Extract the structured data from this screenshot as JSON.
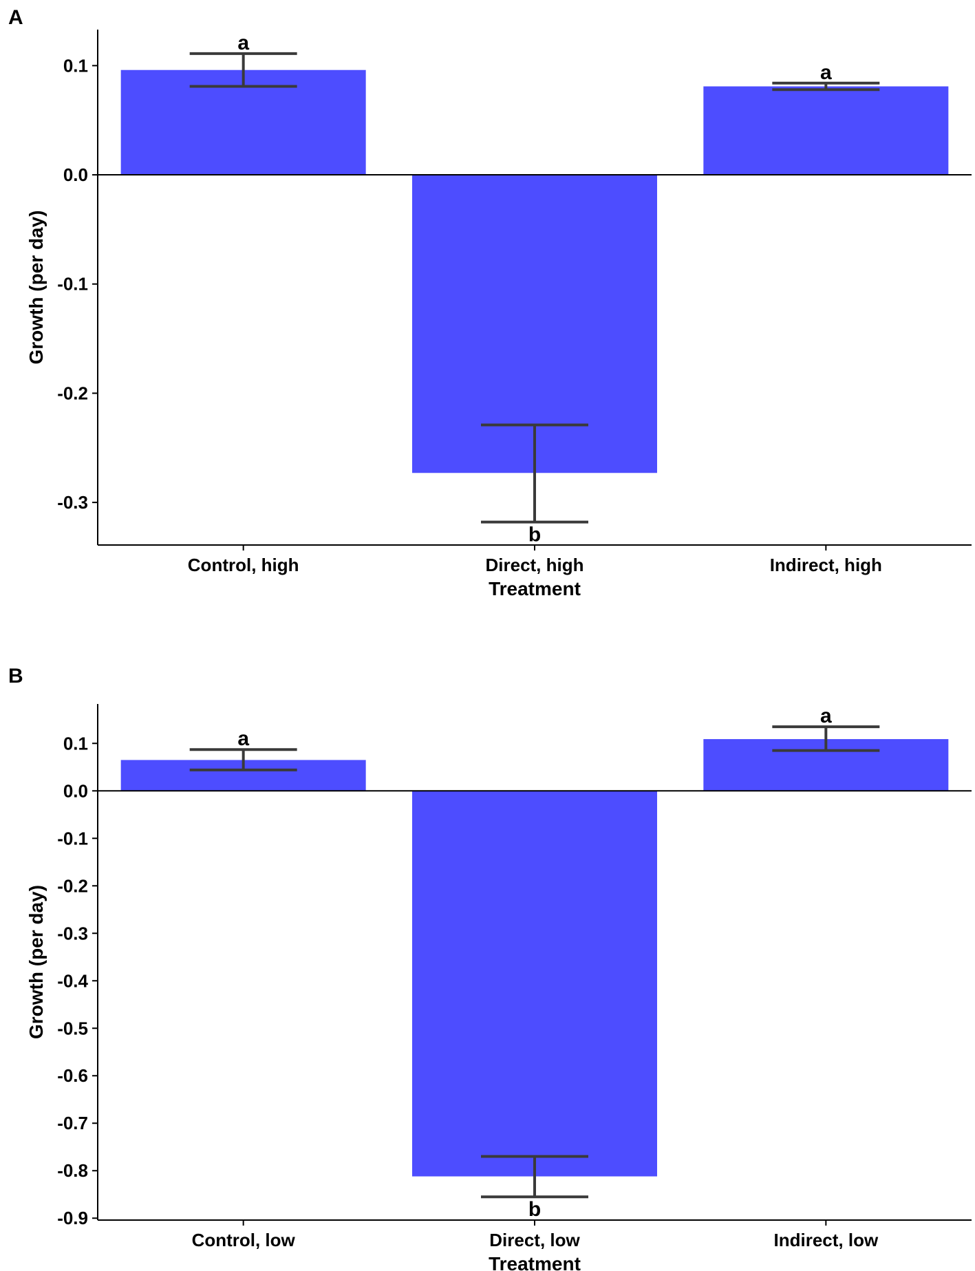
{
  "colors": {
    "bar": "#4d4dff",
    "errorbar": "#3a3a3a",
    "axis": "#000000"
  },
  "chart_data": [
    {
      "type": "bar",
      "panel_label": "A",
      "categories": [
        "Control, high",
        "Direct, high",
        "Indirect, high"
      ],
      "values": [
        0.096,
        -0.273,
        0.081
      ],
      "error_low": [
        0.081,
        -0.318,
        0.078
      ],
      "error_high": [
        0.111,
        -0.229,
        0.084
      ],
      "significance": [
        "a",
        "b",
        "a"
      ],
      "xlabel": "Treatment",
      "ylabel": "Growth (per day)",
      "ylim": [
        -0.339,
        0.133
      ],
      "yticks": [
        0.1,
        0.0,
        -0.1,
        -0.2,
        -0.3
      ],
      "ytick_labels": [
        "0.1",
        "0.0",
        "-0.1",
        "-0.2",
        "-0.3"
      ],
      "grid": false,
      "zero_line": true
    },
    {
      "type": "bar",
      "panel_label": "B",
      "categories": [
        "Control, low",
        "Direct, low",
        "Indirect, low"
      ],
      "values": [
        0.065,
        -0.812,
        0.109
      ],
      "error_low": [
        0.044,
        -0.855,
        0.085
      ],
      "error_high": [
        0.087,
        -0.77,
        0.135
      ],
      "significance": [
        "a",
        "b",
        "a"
      ],
      "xlabel": "Treatment",
      "ylabel": "Growth (per day)",
      "ylim": [
        -0.904,
        0.183
      ],
      "yticks": [
        0.1,
        0.0,
        -0.1,
        -0.2,
        -0.3,
        -0.4,
        -0.5,
        -0.6,
        -0.7,
        -0.8,
        -0.9
      ],
      "ytick_labels": [
        "0.1",
        "0.0",
        "-0.1",
        "-0.2",
        "-0.3",
        "-0.4",
        "-0.5",
        "-0.6",
        "-0.7",
        "-0.8",
        "-0.9"
      ],
      "grid": false,
      "zero_line": true
    }
  ]
}
